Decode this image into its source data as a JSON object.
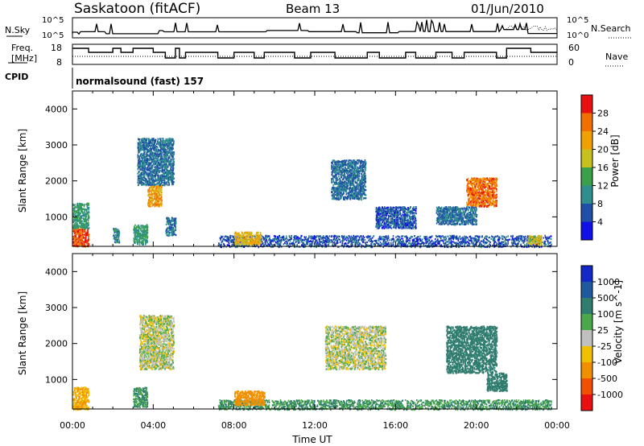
{
  "header": {
    "station": "Saskatoon (fitACF)",
    "beam": "Beam 13",
    "date": "01/Jun/2010"
  },
  "nsky_panel": {
    "left_label": "N.Sky",
    "right_label": "N.Search",
    "ytick_top": "10^5",
    "ytick_bottom": "10^0"
  },
  "freq_panel": {
    "left_label_line1": "Freq.",
    "left_label_line2": "[MHz]",
    "right_label": "Nave",
    "left_ticks": [
      "18",
      "8"
    ],
    "right_ticks": [
      "60",
      "0"
    ]
  },
  "cpid_panel": {
    "label": "CPID",
    "program": "normalsound (fast) 157"
  },
  "time_axis": {
    "label": "Time UT",
    "ticks": [
      "00:00",
      "04:00",
      "08:00",
      "12:00",
      "16:00",
      "20:00",
      "00:00"
    ]
  },
  "power_panel": {
    "ylabel": "Slant Range [km]",
    "yticks": [
      "1000",
      "2000",
      "3000",
      "4000"
    ],
    "colorbar_label": "Power [dB]",
    "colorbar_ticks": [
      "4",
      "8",
      "12",
      "16",
      "20",
      "24",
      "28"
    ],
    "colorbar_colors": [
      "#1010e8",
      "#1f4fa6",
      "#2f8e8e",
      "#3aa04a",
      "#c8c020",
      "#f0a000",
      "#f07000",
      "#e81010"
    ]
  },
  "velocity_panel": {
    "ylabel": "Slant Range [km]",
    "yticks": [
      "1000",
      "2000",
      "3000",
      "4000"
    ],
    "colorbar_label": "Velocity [m s^-1]",
    "colorbar_ticks": [
      "1000",
      "500",
      "100",
      "25",
      "-25",
      "-100",
      "-500",
      "-1000"
    ],
    "colorbar_colors": [
      "#1428c8",
      "#1f5aa0",
      "#2f7d6e",
      "#4aa84a",
      "#c0c0c0",
      "#f0c000",
      "#f09000",
      "#f05000",
      "#e81010"
    ]
  },
  "chart_data": {
    "type": "heatmap",
    "x_range_hours": [
      0,
      24
    ],
    "y_range_km": [
      180,
      4500
    ],
    "power_echo_regions": [
      {
        "t0": 0.0,
        "t1": 0.8,
        "r0": 180,
        "r1": 700,
        "power_db": 28
      },
      {
        "t0": 0.0,
        "t1": 0.8,
        "r0": 700,
        "r1": 1400,
        "power_db": 12
      },
      {
        "t0": 2.0,
        "t1": 2.3,
        "r0": 300,
        "r1": 700,
        "power_db": 10
      },
      {
        "t0": 3.0,
        "t1": 3.7,
        "r0": 250,
        "r1": 800,
        "power_db": 12
      },
      {
        "t0": 3.7,
        "t1": 4.4,
        "r0": 1300,
        "r1": 1900,
        "power_db": 22
      },
      {
        "t0": 3.2,
        "t1": 5.0,
        "r0": 1900,
        "r1": 3200,
        "power_db": 8
      },
      {
        "t0": 4.6,
        "t1": 5.1,
        "r0": 500,
        "r1": 1000,
        "power_db": 8
      },
      {
        "t0": 7.2,
        "t1": 23.7,
        "r0": 180,
        "r1": 500,
        "power_db": 6
      },
      {
        "t0": 8.0,
        "t1": 9.3,
        "r0": 250,
        "r1": 600,
        "power_db": 20
      },
      {
        "t0": 12.8,
        "t1": 14.5,
        "r0": 1500,
        "r1": 2600,
        "power_db": 8
      },
      {
        "t0": 15.0,
        "t1": 17.0,
        "r0": 700,
        "r1": 1300,
        "power_db": 6
      },
      {
        "t0": 19.5,
        "t1": 21.0,
        "r0": 1300,
        "r1": 2100,
        "power_db": 26
      },
      {
        "t0": 18.0,
        "t1": 20.0,
        "r0": 800,
        "r1": 1300,
        "power_db": 8
      },
      {
        "t0": 22.5,
        "t1": 23.2,
        "r0": 250,
        "r1": 500,
        "power_db": 18
      }
    ],
    "velocity_echo_regions": [
      {
        "t0": 0.0,
        "t1": 0.8,
        "r0": 180,
        "r1": 800,
        "velocity": -100
      },
      {
        "t0": 3.0,
        "t1": 3.7,
        "r0": 250,
        "r1": 800,
        "velocity": 100
      },
      {
        "t0": 3.3,
        "t1": 5.0,
        "r0": 1300,
        "r1": 2800,
        "velocity": 0
      },
      {
        "t0": 7.2,
        "t1": 23.7,
        "r0": 180,
        "r1": 450,
        "velocity": 100
      },
      {
        "t0": 8.0,
        "t1": 9.5,
        "r0": 300,
        "r1": 700,
        "velocity": -200
      },
      {
        "t0": 12.5,
        "t1": 15.5,
        "r0": 1300,
        "r1": 2500,
        "velocity": 0
      },
      {
        "t0": 18.5,
        "t1": 21.0,
        "r0": 1200,
        "r1": 2500,
        "velocity": 200
      },
      {
        "t0": 20.5,
        "t1": 21.5,
        "r0": 700,
        "r1": 1200,
        "velocity": 200
      }
    ]
  }
}
